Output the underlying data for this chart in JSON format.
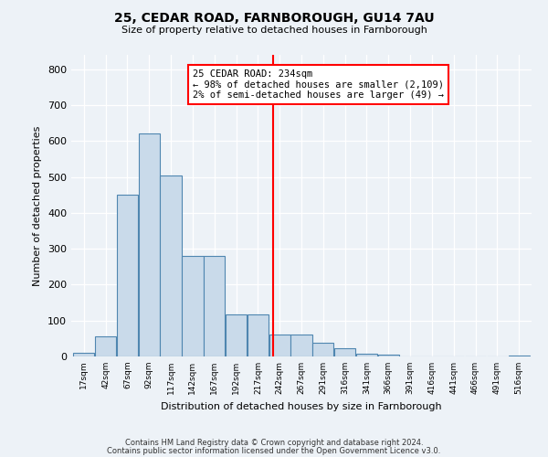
{
  "title1": "25, CEDAR ROAD, FARNBOROUGH, GU14 7AU",
  "title2": "Size of property relative to detached houses in Farnborough",
  "xlabel": "Distribution of detached houses by size in Farnborough",
  "ylabel": "Number of detached properties",
  "bar_values": [
    10,
    57,
    450,
    620,
    505,
    280,
    280,
    117,
    117,
    60,
    60,
    38,
    22,
    8,
    5,
    0,
    0,
    0,
    0,
    0,
    3
  ],
  "bin_labels": [
    "17sqm",
    "42sqm",
    "67sqm",
    "92sqm",
    "117sqm",
    "142sqm",
    "167sqm",
    "192sqm",
    "217sqm",
    "242sqm",
    "267sqm",
    "291sqm",
    "316sqm",
    "341sqm",
    "366sqm",
    "391sqm",
    "416sqm",
    "441sqm",
    "466sqm",
    "491sqm",
    "516sqm"
  ],
  "bar_color": "#c9daea",
  "bar_edge_color": "#4f86b0",
  "vline_color": "red",
  "annotation_title": "25 CEDAR ROAD: 234sqm",
  "annotation_line1": "← 98% of detached houses are smaller (2,109)",
  "annotation_line2": "2% of semi-detached houses are larger (49) →",
  "ylim": [
    0,
    840
  ],
  "yticks": [
    0,
    100,
    200,
    300,
    400,
    500,
    600,
    700,
    800
  ],
  "footer1": "Contains HM Land Registry data © Crown copyright and database right 2024.",
  "footer2": "Contains public sector information licensed under the Open Government Licence v3.0.",
  "bg_color": "#edf2f7",
  "grid_color": "#ffffff"
}
